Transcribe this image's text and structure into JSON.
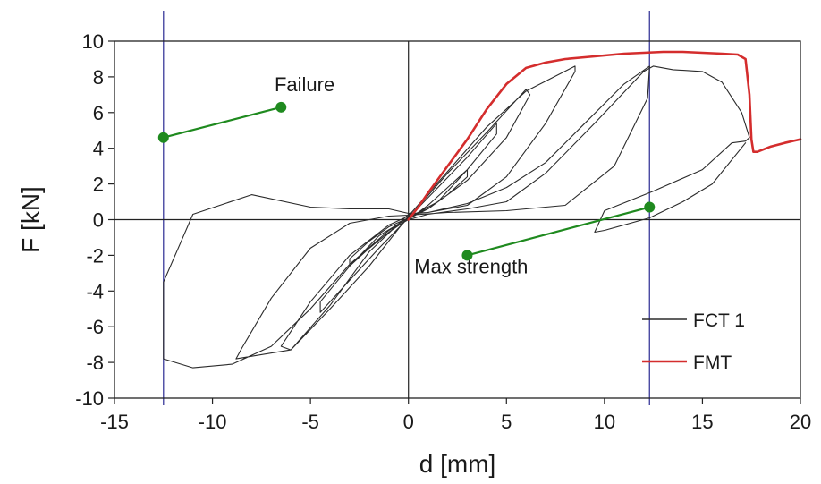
{
  "chart_data": {
    "type": "line",
    "title": "",
    "xlabel": "d [mm]",
    "ylabel": "F [kN]",
    "xlim": [
      -15,
      20
    ],
    "ylim": [
      -10,
      10
    ],
    "x_ticks": [
      -15,
      -10,
      -5,
      0,
      5,
      10,
      15,
      20
    ],
    "y_ticks": [
      -10,
      -8,
      -6,
      -4,
      -2,
      0,
      2,
      4,
      6,
      8,
      10
    ],
    "grid": false,
    "legend_position": "bottom-right",
    "colors": {
      "fct": "#2b2b2b",
      "fmt": "#d42d2d",
      "annotation": "#1f8a1f",
      "reference": "#3a3a9a",
      "axis": "#222222"
    },
    "reference_lines": [
      {
        "orientation": "vertical",
        "x": -12.5
      },
      {
        "orientation": "vertical",
        "x": 12.3
      },
      {
        "orientation": "vertical",
        "x": 0
      },
      {
        "orientation": "horizontal",
        "y": 0
      }
    ],
    "annotations": [
      {
        "text": "Failure",
        "text_x": -5.3,
        "text_y": 7.2,
        "from": [
          -12.5,
          4.6
        ],
        "to": [
          -6.5,
          6.3
        ]
      },
      {
        "text": "Max strength",
        "text_x": 3.2,
        "text_y": -3.0,
        "from": [
          12.3,
          0.7
        ],
        "to": [
          3.0,
          -2.0
        ]
      }
    ],
    "series": [
      {
        "name": "FCT 1",
        "x": [
          0,
          1,
          2,
          3,
          3,
          2,
          1,
          0,
          -1,
          -2,
          -3,
          -3,
          -2,
          -1,
          0,
          1.5,
          3,
          4.5,
          4.5,
          3,
          1.5,
          0,
          -1.5,
          -3,
          -4.5,
          -4.5,
          -3,
          -1.5,
          0,
          2,
          4,
          6,
          6.2,
          5,
          3,
          1,
          0,
          -2,
          -4,
          -6,
          -6.5,
          -5,
          -3,
          -1,
          0,
          2,
          4,
          6,
          8.5,
          8.5,
          7,
          5,
          3,
          1,
          0,
          -2,
          -4,
          -6,
          -8.8,
          -8.5,
          -7,
          -5,
          -3,
          -1,
          0,
          2,
          5,
          8,
          10.5,
          12.2,
          12.3,
          11,
          9,
          7,
          5,
          3,
          1,
          0,
          -1,
          -3,
          -5,
          -8,
          -11,
          -12.5,
          -12.5,
          -11,
          -9,
          -7,
          -5,
          -3,
          -1,
          0,
          1,
          3,
          5,
          7,
          9.5,
          12.0,
          12.5,
          13.5,
          15,
          16,
          17,
          17.4,
          17.2,
          16.5,
          15,
          12.5,
          10,
          9.5,
          10,
          12.3,
          14,
          15.5,
          17.2
        ],
        "y": [
          0,
          0.8,
          1.8,
          2.8,
          2.4,
          1.4,
          0.6,
          0.05,
          -0.7,
          -1.6,
          -2.6,
          -2.2,
          -1.2,
          -0.4,
          0.1,
          1.8,
          3.5,
          5.4,
          4.8,
          2.8,
          1.0,
          0.1,
          -1.6,
          -3.4,
          -5.2,
          -4.6,
          -2.6,
          -0.9,
          0.1,
          2.6,
          4.9,
          7.3,
          7.0,
          4.6,
          2.2,
          0.6,
          0.2,
          -2.6,
          -5.0,
          -7.3,
          -7.1,
          -4.6,
          -2.0,
          -0.3,
          0.2,
          2.7,
          5.2,
          7.2,
          8.6,
          8.3,
          5.4,
          2.4,
          0.8,
          0.4,
          0.3,
          -1.8,
          -4.8,
          -7.3,
          -7.8,
          -7.2,
          -4.4,
          -1.6,
          -0.2,
          0.2,
          0.25,
          0.4,
          0.5,
          0.8,
          3.0,
          6.8,
          8.6,
          7.6,
          5.4,
          3.2,
          1.8,
          0.9,
          0.4,
          0.35,
          0.6,
          0.6,
          0.7,
          1.4,
          0.3,
          -3.5,
          -7.8,
          -8.3,
          -8.1,
          -7.1,
          -5.0,
          -2.5,
          -0.6,
          0.0,
          0.3,
          0.6,
          1.0,
          2.6,
          5.4,
          8.3,
          8.6,
          8.4,
          8.3,
          7.7,
          6.0,
          4.6,
          4.4,
          4.3,
          2.8,
          1.6,
          0.5,
          -0.7,
          -0.6,
          0.1,
          1.0,
          2.0,
          4.3
        ]
      },
      {
        "name": "FMT",
        "x": [
          0,
          0.5,
          1,
          2,
          3,
          4,
          5,
          6,
          7,
          8,
          9,
          10,
          11,
          12,
          13,
          14,
          15,
          16,
          16.8,
          17.2,
          17.4,
          17.5,
          17.6,
          17.8,
          18.5,
          19.2,
          20
        ],
        "y": [
          0,
          0.7,
          1.5,
          3.0,
          4.5,
          6.2,
          7.6,
          8.5,
          8.8,
          9.0,
          9.1,
          9.2,
          9.3,
          9.35,
          9.4,
          9.4,
          9.35,
          9.3,
          9.25,
          9.0,
          7.0,
          4.5,
          3.8,
          3.8,
          4.1,
          4.3,
          4.5
        ]
      }
    ]
  }
}
